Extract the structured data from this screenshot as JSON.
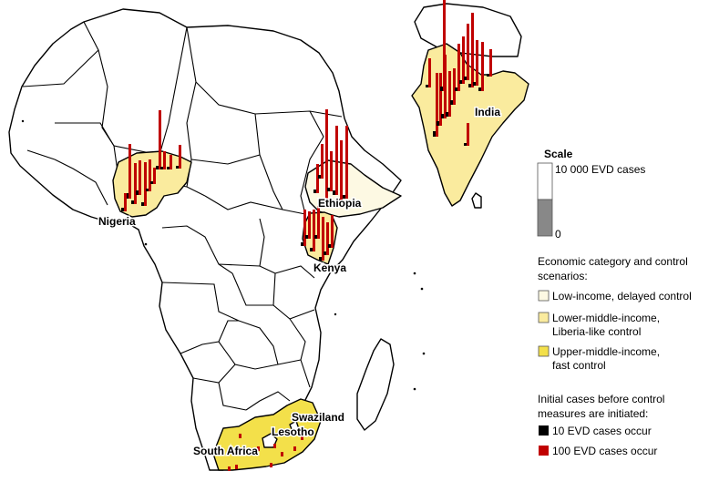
{
  "colors": {
    "low": "#fdf9e3",
    "lower_middle": "#faeb9e",
    "upper_middle": "#f3e04a",
    "bar_10": "#000000",
    "bar_100": "#c00000"
  },
  "countries": {
    "nigeria": "Nigeria",
    "ethiopia": "Ethiopia",
    "kenya": "Kenya",
    "india": "India",
    "south_africa": "South Africa",
    "swaziland": "Swaziland",
    "lesotho": "Lesotho"
  },
  "scale": {
    "title": "Scale",
    "max_label": "10 000 EVD cases",
    "min_label": "0"
  },
  "economic": {
    "heading": "Economic category and control scenarios:",
    "items": [
      {
        "label_1": "Low-income, delayed control",
        "label_2": ""
      },
      {
        "label_1": "Lower-middle-income,",
        "label_2": "Liberia-like control"
      },
      {
        "label_1": "Upper-middle-income,",
        "label_2": "fast control"
      }
    ]
  },
  "initial": {
    "heading": "Initial cases before control measures are initiated:",
    "items": [
      {
        "label": "10 EVD cases occur"
      },
      {
        "label": "100 EVD cases occur"
      }
    ]
  }
}
